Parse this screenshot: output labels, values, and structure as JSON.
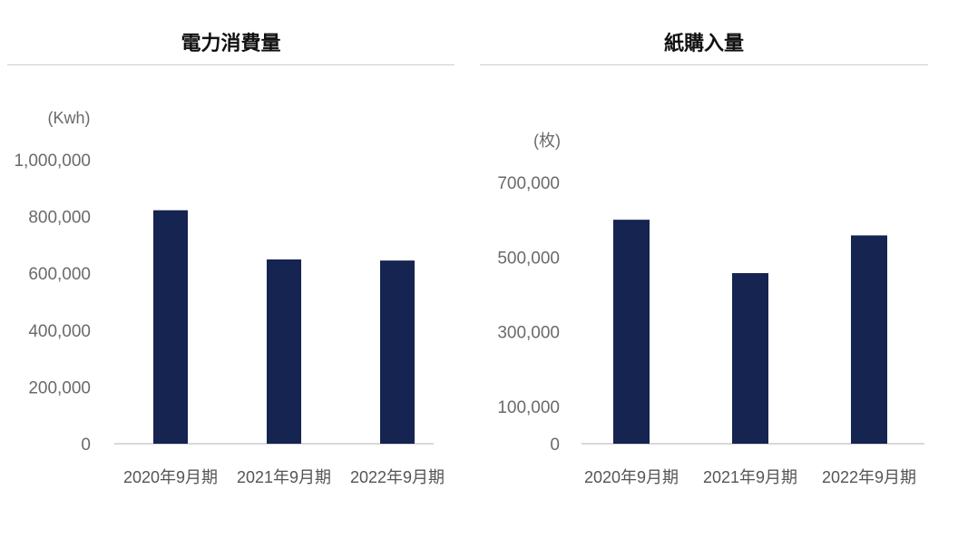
{
  "colors": {
    "bar": "#152450",
    "baseline": "#cccccc"
  },
  "chart_data": [
    {
      "type": "bar",
      "title": "電力消費量",
      "unit": "(Kwh)",
      "categories": [
        "2020年9月期",
        "2021年9月期",
        "2022年9月期"
      ],
      "values": [
        822000,
        649000,
        645000
      ],
      "yticks": [
        0,
        200000,
        400000,
        600000,
        800000,
        1000000
      ],
      "ytick_labels": [
        "0",
        "200,000",
        "400,000",
        "600,000",
        "800,000",
        "1,000,000"
      ],
      "ylim": [
        0,
        1000000
      ],
      "grid": false
    },
    {
      "type": "bar",
      "title": "紙購入量",
      "unit": "(枚)",
      "categories": [
        "2020年9月期",
        "2021年9月期",
        "2022年9月期"
      ],
      "values": [
        600000,
        457000,
        558000
      ],
      "yticks": [
        0,
        100000,
        300000,
        500000,
        700000
      ],
      "ytick_labels": [
        "0",
        "100,000",
        "300,000",
        "500,000",
        "700,000"
      ],
      "ylim": [
        0,
        700000
      ],
      "grid": false
    }
  ]
}
